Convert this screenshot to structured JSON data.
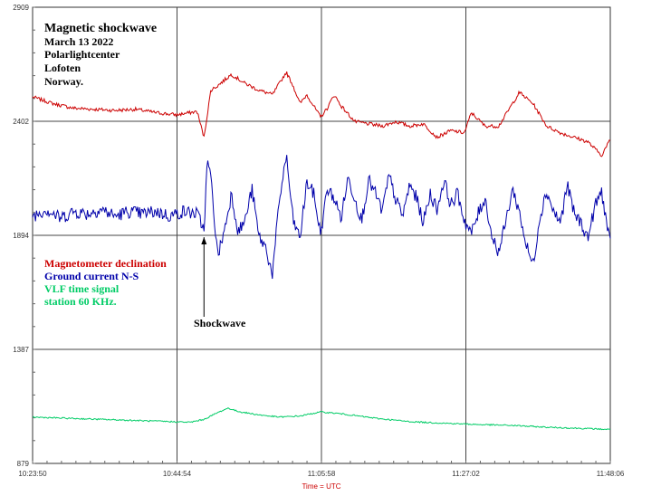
{
  "chart_data": {
    "type": "line",
    "title_lines": [
      "Magnetic shockwave",
      "March 13 2022",
      "Polarlightcenter",
      "Lofoten",
      "Norway."
    ],
    "xlabel": "Time = UTC",
    "ylabel": "",
    "ylim": [
      879,
      2909
    ],
    "yticks": [
      "2909",
      "2402",
      "1894",
      "1387",
      "879"
    ],
    "xlim_minutes": [
      0,
      84.27
    ],
    "xticks": [
      "10:23:50",
      "10:44:54",
      "11:05:58",
      "11:27:02",
      "11:48:06"
    ],
    "grid": true,
    "legend_placement": "left-middle",
    "legend": [
      {
        "label": "Magnetometer declination",
        "color": "#cc0000"
      },
      {
        "label": "Ground current N-S",
        "color": "#0000aa"
      },
      {
        "label": "VLF time signal",
        "color": "#00cc66"
      },
      {
        "label": "station 60 KHz.",
        "color": "#00cc66"
      }
    ],
    "annotation": {
      "text": "Shockwave",
      "x_minute": 25.0
    },
    "series": [
      {
        "name": "Magnetometer declination",
        "color": "#cc0000",
        "x": [
          0,
          3,
          6,
          9,
          12,
          15,
          18,
          21,
          24,
          25,
          26,
          27,
          29,
          31,
          33,
          35,
          37,
          38,
          39,
          40,
          42,
          43,
          44,
          45,
          47,
          49,
          51,
          53,
          55,
          57,
          59,
          61,
          63,
          64,
          66,
          68,
          70,
          71,
          73,
          75,
          77,
          79,
          81,
          82,
          83,
          84.27
        ],
        "values": [
          2510,
          2480,
          2460,
          2455,
          2450,
          2455,
          2440,
          2430,
          2445,
          2330,
          2540,
          2560,
          2610,
          2570,
          2540,
          2520,
          2620,
          2560,
          2480,
          2520,
          2420,
          2460,
          2520,
          2470,
          2400,
          2390,
          2380,
          2400,
          2380,
          2390,
          2330,
          2360,
          2350,
          2440,
          2380,
          2380,
          2480,
          2530,
          2480,
          2380,
          2350,
          2330,
          2310,
          2280,
          2250,
          2320
        ]
      },
      {
        "name": "Ground current N-S",
        "color": "#0000aa",
        "x": [
          0,
          2,
          4,
          6,
          8,
          10,
          12,
          14,
          16,
          18,
          20,
          22,
          24,
          25,
          25.5,
          26,
          27,
          28,
          29,
          30,
          31,
          32,
          33,
          34,
          35,
          36,
          37,
          38,
          39,
          40,
          41,
          42,
          43,
          44,
          45,
          46,
          47,
          48,
          49,
          50,
          51,
          52,
          53,
          54,
          55,
          56,
          57,
          58,
          59,
          60,
          61,
          62,
          63,
          64,
          65,
          66,
          67,
          68,
          69,
          70,
          71,
          72,
          73,
          74,
          75,
          76,
          77,
          78,
          79,
          80,
          81,
          82,
          83,
          84.27
        ],
        "values": [
          1980,
          2010,
          1970,
          2000,
          1990,
          2010,
          1980,
          2000,
          1990,
          2000,
          1980,
          2000,
          1990,
          1920,
          2230,
          2150,
          1800,
          1920,
          2080,
          1910,
          1960,
          2100,
          1890,
          1840,
          1720,
          2050,
          2250,
          1960,
          1880,
          2130,
          2080,
          1900,
          2100,
          2060,
          1970,
          2150,
          2060,
          1960,
          2140,
          2080,
          2000,
          2160,
          2050,
          1980,
          2120,
          2060,
          1950,
          2080,
          2010,
          2140,
          2030,
          2080,
          1960,
          1900,
          1990,
          2060,
          1890,
          1820,
          1950,
          2100,
          2000,
          1850,
          1760,
          1980,
          2090,
          2000,
          1950,
          2120,
          1990,
          1950,
          1880,
          2020,
          2090,
          1850
        ]
      },
      {
        "name": "VLF time signal",
        "color": "#00cc66",
        "x": [
          0,
          5,
          10,
          15,
          20,
          23,
          25,
          27,
          28.5,
          30,
          33,
          36,
          39,
          42,
          45,
          50,
          55,
          60,
          65,
          70,
          75,
          80,
          84.27
        ],
        "values": [
          1085,
          1080,
          1075,
          1070,
          1065,
          1062,
          1075,
          1105,
          1125,
          1110,
          1095,
          1085,
          1090,
          1108,
          1100,
          1080,
          1065,
          1058,
          1052,
          1048,
          1040,
          1035,
          1030
        ]
      }
    ]
  }
}
